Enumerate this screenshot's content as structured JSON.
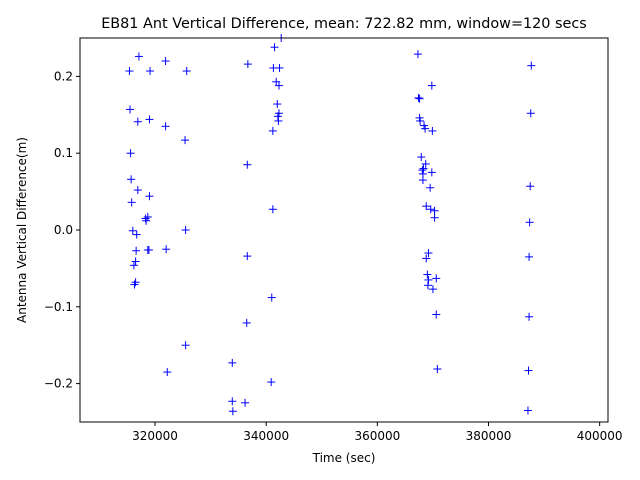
{
  "chart_data": {
    "type": "scatter",
    "title": "EB81 Ant Vertical Difference, mean: 722.82 mm, window=120 secs",
    "xlabel": "Time (sec)",
    "ylabel": "Antenna Vertical Difference(m)",
    "xlim": [
      306500,
      401500
    ],
    "ylim": [
      -0.25,
      0.25
    ],
    "xticks": [
      320000,
      340000,
      360000,
      380000,
      400000
    ],
    "xtick_labels": [
      "320000",
      "340000",
      "360000",
      "380000",
      "400000"
    ],
    "yticks": [
      -0.2,
      -0.1,
      0.0,
      0.1,
      0.2
    ],
    "ytick_labels": [
      "−0.2",
      "−0.1",
      "0.0",
      "0.1",
      "0.2"
    ],
    "grid": false,
    "marker": "+",
    "color": "#0000ff",
    "points": [
      [
        315400,
        0.207
      ],
      [
        315500,
        0.157
      ],
      [
        315600,
        0.1
      ],
      [
        315700,
        0.066
      ],
      [
        315800,
        0.036
      ],
      [
        316000,
        -0.001
      ],
      [
        316200,
        -0.046
      ],
      [
        316300,
        -0.071
      ],
      [
        316500,
        -0.068
      ],
      [
        316500,
        -0.041
      ],
      [
        316600,
        -0.027
      ],
      [
        316700,
        -0.006
      ],
      [
        316900,
        0.052
      ],
      [
        316900,
        0.141
      ],
      [
        317100,
        0.226
      ],
      [
        318300,
        0.015
      ],
      [
        318400,
        0.012
      ],
      [
        318700,
        0.017
      ],
      [
        318700,
        -0.026
      ],
      [
        318900,
        -0.026
      ],
      [
        319000,
        0.044
      ],
      [
        319000,
        0.144
      ],
      [
        319100,
        0.207
      ],
      [
        321900,
        0.22
      ],
      [
        321900,
        0.135
      ],
      [
        322000,
        -0.025
      ],
      [
        322200,
        -0.185
      ],
      [
        325400,
        0.117
      ],
      [
        325500,
        0.0
      ],
      [
        325500,
        -0.15
      ],
      [
        325700,
        0.207
      ],
      [
        333900,
        -0.173
      ],
      [
        333900,
        -0.223
      ],
      [
        334000,
        -0.236
      ],
      [
        336200,
        -0.225
      ],
      [
        336500,
        -0.121
      ],
      [
        336600,
        -0.034
      ],
      [
        336600,
        0.085
      ],
      [
        336700,
        0.216
      ],
      [
        340900,
        -0.198
      ],
      [
        341000,
        -0.088
      ],
      [
        341200,
        0.027
      ],
      [
        341200,
        0.129
      ],
      [
        341300,
        0.211
      ],
      [
        341500,
        0.238
      ],
      [
        341800,
        0.193
      ],
      [
        342000,
        0.164
      ],
      [
        342100,
        0.148
      ],
      [
        342200,
        0.142
      ],
      [
        342300,
        0.152
      ],
      [
        342300,
        0.188
      ],
      [
        342400,
        0.211
      ],
      [
        342700,
        0.25
      ],
      [
        367300,
        0.229
      ],
      [
        367400,
        0.172
      ],
      [
        367600,
        0.171
      ],
      [
        367600,
        0.146
      ],
      [
        367700,
        0.142
      ],
      [
        367900,
        0.095
      ],
      [
        368100,
        0.078
      ],
      [
        368200,
        0.073
      ],
      [
        368200,
        0.065
      ],
      [
        368300,
        0.08
      ],
      [
        368400,
        0.136
      ],
      [
        368600,
        0.132
      ],
      [
        368700,
        0.086
      ],
      [
        368800,
        0.031
      ],
      [
        368800,
        -0.037
      ],
      [
        369000,
        -0.058
      ],
      [
        369100,
        -0.072
      ],
      [
        369200,
        -0.03
      ],
      [
        369200,
        -0.065
      ],
      [
        369500,
        0.055
      ],
      [
        369600,
        0.027
      ],
      [
        369800,
        0.075
      ],
      [
        369800,
        0.188
      ],
      [
        369900,
        0.129
      ],
      [
        370000,
        -0.077
      ],
      [
        370300,
        0.016
      ],
      [
        370300,
        0.025
      ],
      [
        370600,
        -0.063
      ],
      [
        370600,
        -0.11
      ],
      [
        370800,
        -0.181
      ],
      [
        387100,
        -0.235
      ],
      [
        387200,
        -0.183
      ],
      [
        387300,
        -0.113
      ],
      [
        387300,
        -0.035
      ],
      [
        387400,
        0.01
      ],
      [
        387500,
        0.057
      ],
      [
        387600,
        0.152
      ],
      [
        387700,
        0.214
      ]
    ]
  }
}
